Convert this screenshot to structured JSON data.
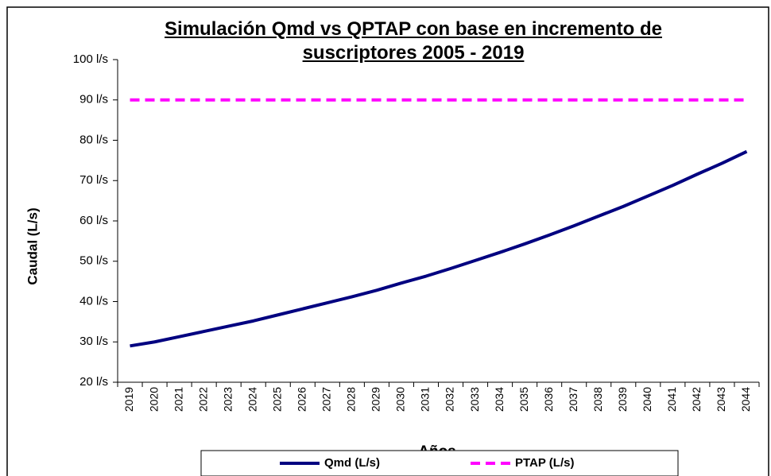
{
  "chart_data": {
    "type": "line",
    "title": "Simulación Qmd vs QPTAP con base en incremento de suscriptores 2005 - 2019",
    "y_label": "Caudal (L/s)",
    "x_label": "Años",
    "categories": [
      "2019",
      "2020",
      "2021",
      "2022",
      "2023",
      "2024",
      "2025",
      "2026",
      "2027",
      "2028",
      "2029",
      "2030",
      "2031",
      "2032",
      "2033",
      "2034",
      "2035",
      "2036",
      "2037",
      "2038",
      "2039",
      "2040",
      "2041",
      "2042",
      "2043",
      "2044"
    ],
    "series": [
      {
        "name": "Qmd (L/s)",
        "color": "#000080",
        "dash": false,
        "values": [
          29,
          30,
          31.3,
          32.6,
          33.9,
          35.2,
          36.7,
          38.2,
          39.7,
          41.2,
          42.8,
          44.6,
          46.3,
          48.2,
          50.2,
          52.2,
          54.3,
          56.5,
          58.8,
          61.2,
          63.6,
          66.2,
          68.8,
          71.6,
          74.3,
          77.2
        ]
      },
      {
        "name": "PTAP (L/s)",
        "color": "#ff00ff",
        "dash": true,
        "values": [
          90,
          90,
          90,
          90,
          90,
          90,
          90,
          90,
          90,
          90,
          90,
          90,
          90,
          90,
          90,
          90,
          90,
          90,
          90,
          90,
          90,
          90,
          90,
          90,
          90,
          90
        ]
      }
    ],
    "ylim": [
      20,
      100
    ],
    "yticks": [
      {
        "value": 20,
        "label": "20 l/s"
      },
      {
        "value": 30,
        "label": "30 l/s"
      },
      {
        "value": 40,
        "label": "40 l/s"
      },
      {
        "value": 50,
        "label": "50 l/s"
      },
      {
        "value": 60,
        "label": "60 l/s"
      },
      {
        "value": 70,
        "label": "70 l/s"
      },
      {
        "value": 80,
        "label": "80 l/s"
      },
      {
        "value": 90,
        "label": "90 l/s"
      },
      {
        "value": 100,
        "label": "100 l/s"
      }
    ],
    "grid": false
  }
}
